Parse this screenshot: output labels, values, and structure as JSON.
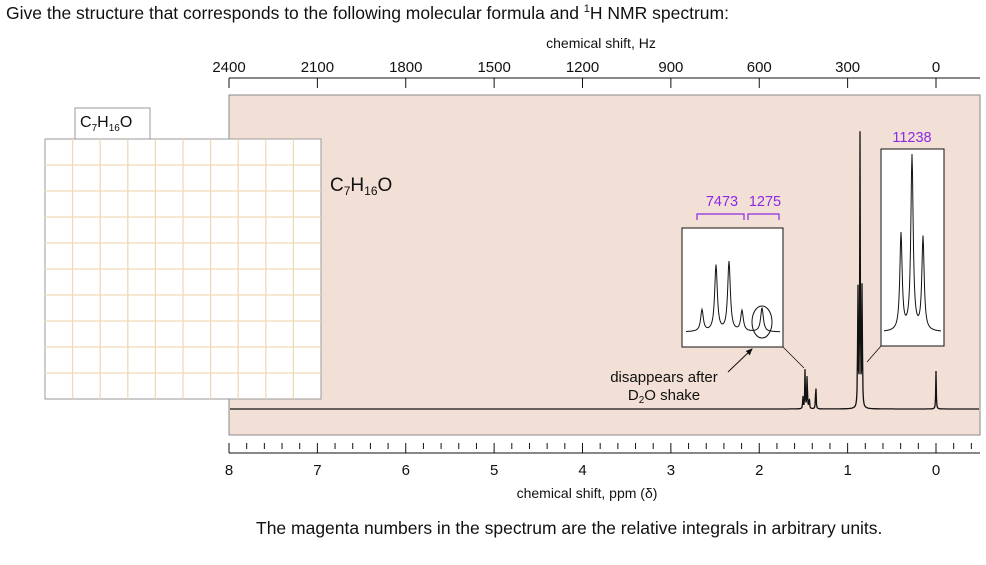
{
  "prompt": {
    "text_before": "Give the structure that corresponds to the following molecular formula and ",
    "superscript": "1",
    "text_after": "H NMR spectrum:"
  },
  "formula_tab": {
    "c": "C",
    "c_sub": "7",
    "h": "H",
    "h_sub": "16",
    "o": "O"
  },
  "spectrum_formula": {
    "c": "C",
    "c_sub": "7",
    "h": "H",
    "h_sub": "16",
    "o": "O"
  },
  "footer": "The magenta numbers in the spectrum are the relative integrals in arbitrary units.",
  "annotation": {
    "line1": "disappears after",
    "d": "D",
    "d_sub": "2",
    "rest": "O shake"
  },
  "colors": {
    "plot_bg": "#f2e0d6",
    "integral": "#8a2be2",
    "grid": "#f0d9b8"
  },
  "chart_data": {
    "type": "line",
    "x_top": {
      "label": "chemical shift, Hz",
      "ticks": [
        2400,
        2100,
        1800,
        1500,
        1200,
        900,
        600,
        300,
        0
      ],
      "range": [
        2400,
        0
      ]
    },
    "x_bottom": {
      "label": "chemical shift, ppm (δ)",
      "ticks": [
        8,
        7,
        6,
        5,
        4,
        3,
        2,
        1,
        0
      ],
      "range": [
        8,
        0
      ]
    },
    "signals": [
      {
        "name": "quartet",
        "shift_ppm": 1.47,
        "multiplicity": "quartet",
        "integral": 7473
      },
      {
        "name": "OH singlet",
        "shift_ppm": 1.36,
        "multiplicity": "singlet",
        "integral": 1275,
        "note": "disappears after D2O shake"
      },
      {
        "name": "triplet",
        "shift_ppm": 0.86,
        "multiplicity": "triplet",
        "integral": 11238
      },
      {
        "name": "TMS",
        "shift_ppm": 0.0,
        "multiplicity": "singlet"
      }
    ],
    "integral_labels": [
      "7473",
      "1275",
      "11238"
    ]
  }
}
